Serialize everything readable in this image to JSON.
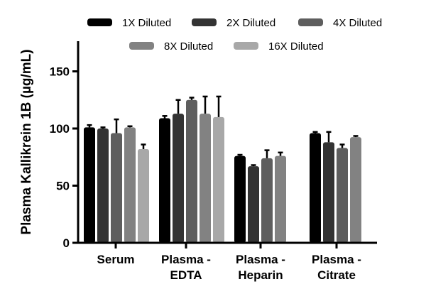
{
  "chart_data": {
    "type": "bar",
    "title": "",
    "xlabel": "",
    "ylabel": "Plasma Kallikrein 1B (µg/mL)",
    "ylim": [
      0,
      175
    ],
    "yticks": [
      0,
      50,
      100,
      150
    ],
    "grid": false,
    "legend_position": "top",
    "categories": [
      [
        "Serum"
      ],
      [
        "Plasma -",
        "EDTA"
      ],
      [
        "Plasma -",
        "Heparin"
      ],
      [
        "Plasma -",
        "Citrate"
      ]
    ],
    "series": [
      {
        "name": "1X Diluted",
        "color": "#000000",
        "values": [
          101,
          109,
          76,
          96
        ],
        "errors": [
          2,
          2,
          1,
          1
        ]
      },
      {
        "name": "2X Diluted",
        "color": "#333333",
        "values": [
          100,
          113,
          67,
          88
        ],
        "errors": [
          1,
          12,
          1,
          9
        ]
      },
      {
        "name": "4X Diluted",
        "color": "#5e5e5e",
        "values": [
          96,
          125,
          74,
          83
        ],
        "errors": [
          12,
          2,
          7,
          3
        ]
      },
      {
        "name": "8X Diluted",
        "color": "#828282",
        "values": [
          101,
          113,
          76,
          92.5
        ],
        "errors": [
          1,
          15,
          3,
          1
        ]
      },
      {
        "name": "16X Diluted",
        "color": "#a8a8a8",
        "values": [
          82,
          110,
          null,
          null
        ],
        "errors": [
          4,
          18,
          null,
          null
        ]
      }
    ]
  }
}
